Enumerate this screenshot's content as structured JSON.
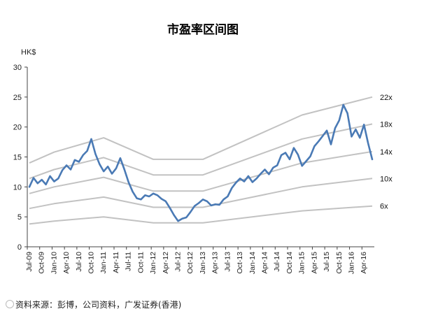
{
  "chart_data": {
    "type": "line",
    "title": "市盈率区间图",
    "ylabel": "HK$",
    "ylim": [
      0,
      30
    ],
    "yticks": [
      0,
      5,
      10,
      15,
      20,
      25,
      30
    ],
    "x_tick_labels": [
      "Jul-09",
      "Oct-09",
      "Jan-10",
      "Apr-10",
      "Jul-10",
      "Oct-10",
      "Jan-11",
      "Apr-11",
      "Jul-11",
      "Oct-11",
      "Jan-12",
      "Apr-12",
      "Jul-12",
      "Oct-12",
      "Jan-13",
      "Apr-13",
      "Jul-13",
      "Oct-13",
      "Jan-14",
      "Apr-14",
      "Jul-14",
      "Oct-14",
      "Jan-15",
      "Apr-15",
      "Jul-15",
      "Oct-15",
      "Jan-16",
      "Apr-16"
    ],
    "grid": false,
    "price_series": {
      "color": "#4a7ab5",
      "points": [
        [
          "Jul-09",
          10.0
        ],
        [
          "Aug-09",
          11.5
        ],
        [
          "Sep-09",
          10.6
        ],
        [
          "Oct-09",
          11.2
        ],
        [
          "Nov-09",
          10.4
        ],
        [
          "Dec-09",
          11.8
        ],
        [
          "Jan-10",
          10.9
        ],
        [
          "Feb-10",
          11.4
        ],
        [
          "Mar-10",
          12.8
        ],
        [
          "Apr-10",
          13.6
        ],
        [
          "May-10",
          12.9
        ],
        [
          "Jun-10",
          14.5
        ],
        [
          "Jul-10",
          14.2
        ],
        [
          "Aug-10",
          15.3
        ],
        [
          "Sep-10",
          16.0
        ],
        [
          "Oct-10",
          18.0
        ],
        [
          "Nov-10",
          15.5
        ],
        [
          "Dec-10",
          13.8
        ],
        [
          "Jan-11",
          12.6
        ],
        [
          "Feb-11",
          13.4
        ],
        [
          "Mar-11",
          12.2
        ],
        [
          "Apr-11",
          13.1
        ],
        [
          "May-11",
          14.8
        ],
        [
          "Jun-11",
          12.9
        ],
        [
          "Jul-11",
          10.8
        ],
        [
          "Aug-11",
          9.2
        ],
        [
          "Sep-11",
          8.1
        ],
        [
          "Oct-11",
          7.9
        ],
        [
          "Nov-11",
          8.6
        ],
        [
          "Dec-11",
          8.4
        ],
        [
          "Jan-12",
          8.9
        ],
        [
          "Feb-12",
          8.6
        ],
        [
          "Mar-12",
          8.0
        ],
        [
          "Apr-12",
          7.6
        ],
        [
          "May-12",
          6.5
        ],
        [
          "Jun-12",
          5.3
        ],
        [
          "Jul-12",
          4.3
        ],
        [
          "Aug-12",
          4.7
        ],
        [
          "Sep-12",
          4.9
        ],
        [
          "Oct-12",
          5.8
        ],
        [
          "Nov-12",
          6.8
        ],
        [
          "Dec-12",
          7.3
        ],
        [
          "Jan-13",
          7.9
        ],
        [
          "Feb-13",
          7.6
        ],
        [
          "Mar-13",
          6.9
        ],
        [
          "Apr-13",
          7.1
        ],
        [
          "May-13",
          7.0
        ],
        [
          "Jun-13",
          7.9
        ],
        [
          "Jul-13",
          8.4
        ],
        [
          "Aug-13",
          9.8
        ],
        [
          "Sep-13",
          10.7
        ],
        [
          "Oct-13",
          11.4
        ],
        [
          "Nov-13",
          10.9
        ],
        [
          "Dec-13",
          11.8
        ],
        [
          "Jan-14",
          10.8
        ],
        [
          "Feb-14",
          11.4
        ],
        [
          "Mar-14",
          12.2
        ],
        [
          "Apr-14",
          12.9
        ],
        [
          "May-14",
          12.1
        ],
        [
          "Jun-14",
          13.2
        ],
        [
          "Jul-14",
          13.6
        ],
        [
          "Aug-14",
          15.3
        ],
        [
          "Sep-14",
          15.7
        ],
        [
          "Oct-14",
          14.6
        ],
        [
          "Nov-14",
          16.5
        ],
        [
          "Dec-14",
          15.4
        ],
        [
          "Jan-15",
          13.5
        ],
        [
          "Feb-15",
          14.3
        ],
        [
          "Mar-15",
          15.1
        ],
        [
          "Apr-15",
          16.8
        ],
        [
          "May-15",
          17.6
        ],
        [
          "Jun-15",
          18.5
        ],
        [
          "Jul-15",
          19.4
        ],
        [
          "Aug-15",
          17.1
        ],
        [
          "Sep-15",
          19.8
        ],
        [
          "Oct-15",
          21.1
        ],
        [
          "Nov-15",
          23.7
        ],
        [
          "Dec-15",
          22.3
        ],
        [
          "Jan-16",
          18.4
        ],
        [
          "Feb-16",
          19.6
        ],
        [
          "Mar-16",
          18.2
        ],
        [
          "Apr-16",
          20.4
        ],
        [
          "May-16",
          17.3
        ],
        [
          "Jun-16",
          14.6
        ]
      ]
    },
    "bands": [
      {
        "label": "22x",
        "points": [
          [
            "Jul-09",
            14.0
          ],
          [
            "Jan-10",
            15.8
          ],
          [
            "Jan-11",
            18.2
          ],
          [
            "Jan-12",
            14.6
          ],
          [
            "Jan-13",
            14.6
          ],
          [
            "Jan-15",
            22.0
          ],
          [
            "Jun-16",
            25.0
          ]
        ]
      },
      {
        "label": "18x",
        "points": [
          [
            "Jul-09",
            11.4
          ],
          [
            "Jan-10",
            12.9
          ],
          [
            "Jan-11",
            14.9
          ],
          [
            "Jan-12",
            12.0
          ],
          [
            "Jan-13",
            12.0
          ],
          [
            "Jan-15",
            18.0
          ],
          [
            "Jun-16",
            20.5
          ]
        ]
      },
      {
        "label": "14x",
        "points": [
          [
            "Jul-09",
            8.9
          ],
          [
            "Jan-10",
            10.0
          ],
          [
            "Jan-11",
            11.6
          ],
          [
            "Jan-12",
            9.3
          ],
          [
            "Jan-13",
            9.3
          ],
          [
            "Jan-15",
            14.0
          ],
          [
            "Jun-16",
            15.9
          ]
        ]
      },
      {
        "label": "10x",
        "points": [
          [
            "Jul-09",
            6.4
          ],
          [
            "Jan-10",
            7.2
          ],
          [
            "Jan-11",
            8.3
          ],
          [
            "Jan-12",
            6.6
          ],
          [
            "Jan-13",
            6.6
          ],
          [
            "Jan-15",
            10.0
          ],
          [
            "Jun-16",
            11.4
          ]
        ]
      },
      {
        "label": "6x",
        "points": [
          [
            "Jul-09",
            3.8
          ],
          [
            "Jan-10",
            4.3
          ],
          [
            "Jan-11",
            5.0
          ],
          [
            "Jan-12",
            4.0
          ],
          [
            "Jan-13",
            4.0
          ],
          [
            "Jan-15",
            6.0
          ],
          [
            "Jun-16",
            6.8
          ]
        ]
      }
    ],
    "band_color": "#c2c2c2"
  },
  "footer": {
    "source": "资料来源：彭博，公司资料，广发证券(香港)"
  }
}
